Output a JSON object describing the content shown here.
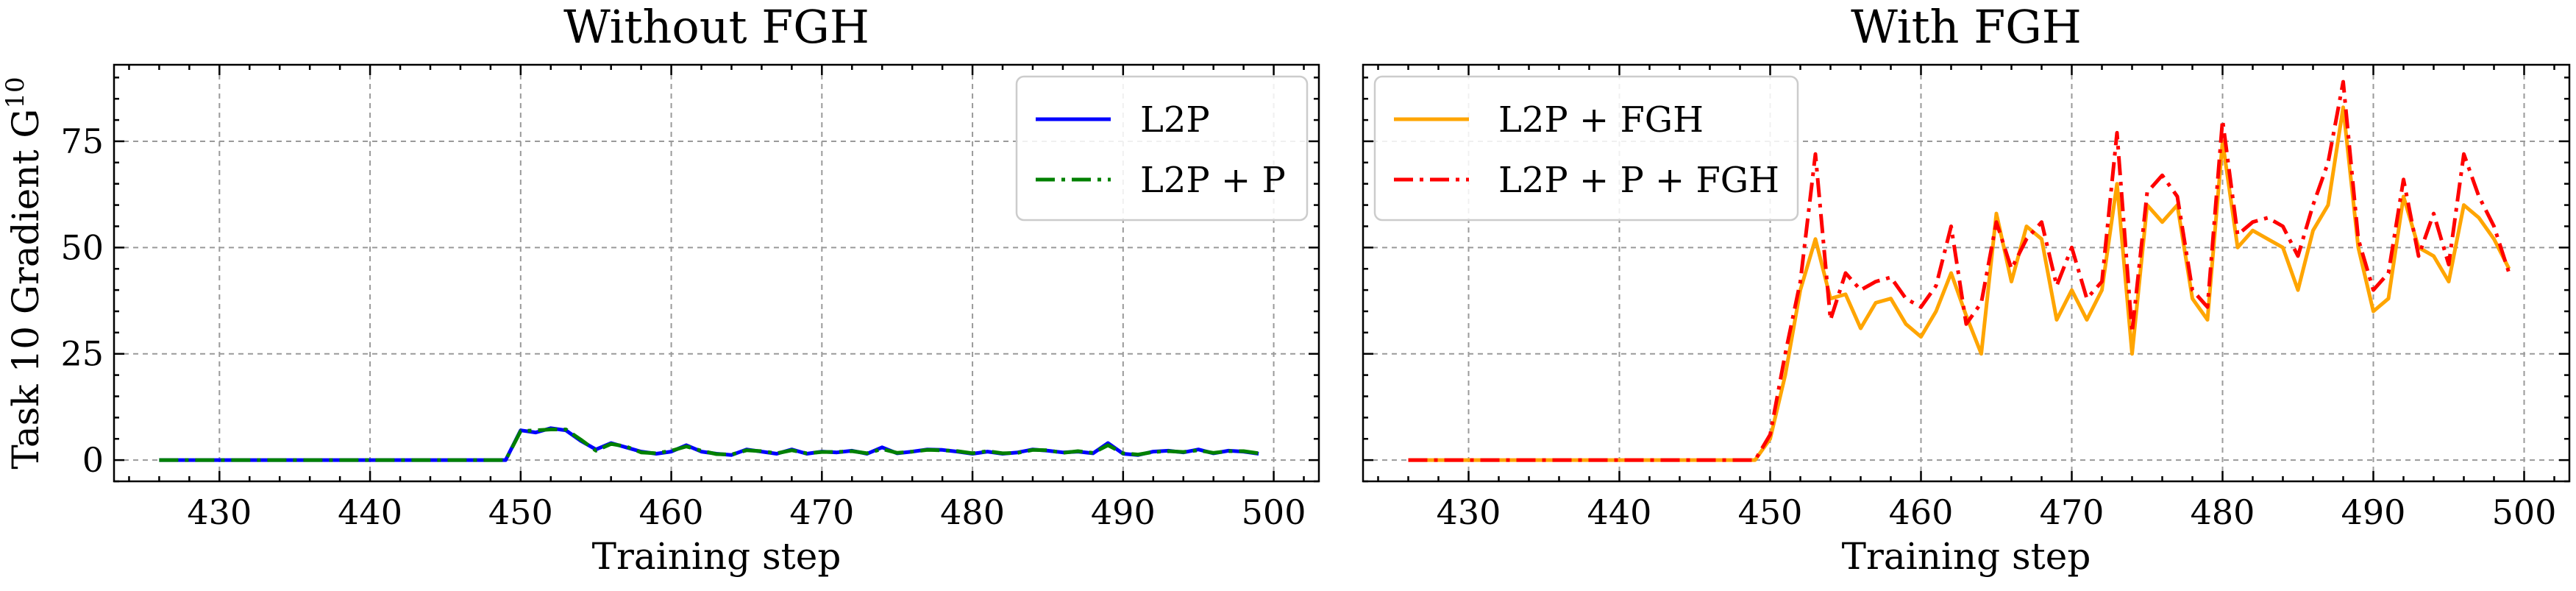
{
  "chart_data": [
    {
      "type": "line",
      "title": "Without FGH",
      "xlabel": "Training step",
      "ylabel": "Task 10 Gradient G",
      "ylabel_superscript": "10",
      "xlim": [
        423,
        503
      ],
      "ylim": [
        -5,
        93
      ],
      "xticks": [
        430,
        440,
        450,
        460,
        470,
        480,
        490,
        500
      ],
      "yticks": [
        0,
        25,
        50,
        75
      ],
      "grid": true,
      "legend_position": "upper right",
      "x": [
        426,
        427,
        428,
        429,
        430,
        431,
        432,
        433,
        434,
        435,
        436,
        437,
        438,
        439,
        440,
        441,
        442,
        443,
        444,
        445,
        446,
        447,
        448,
        449,
        450,
        451,
        452,
        453,
        454,
        455,
        456,
        457,
        458,
        459,
        460,
        461,
        462,
        463,
        464,
        465,
        466,
        467,
        468,
        469,
        470,
        471,
        472,
        473,
        474,
        475,
        476,
        477,
        478,
        479,
        480,
        481,
        482,
        483,
        484,
        485,
        486,
        487,
        488,
        489,
        490,
        491,
        492,
        493,
        494,
        495,
        496,
        497,
        498,
        499
      ],
      "series": [
        {
          "name": "L2P",
          "color": "#0000ff",
          "dash": "solid",
          "values": [
            0,
            0,
            0,
            0,
            0,
            0,
            0,
            0,
            0,
            0,
            0,
            0,
            0,
            0,
            0,
            0,
            0,
            0,
            0,
            0,
            0,
            0,
            0,
            0,
            7,
            6.5,
            7.5,
            7,
            4.5,
            2.5,
            4,
            3,
            2,
            1.5,
            2,
            3.5,
            2,
            1.5,
            1.2,
            2.5,
            2,
            1.5,
            2.5,
            1.5,
            2,
            1.8,
            2.2,
            1.5,
            3,
            1.6,
            2,
            2.5,
            2.4,
            2,
            1.5,
            2,
            1.5,
            1.8,
            2.5,
            2.2,
            1.8,
            2,
            1.6,
            4,
            1.5,
            1.2,
            2,
            2.2,
            1.8,
            2.5,
            1.6,
            2.2,
            2,
            1.5
          ]
        },
        {
          "name": "L2P + P",
          "color": "#008000",
          "dash": "dashdot",
          "values": [
            0,
            0,
            0,
            0,
            0,
            0,
            0,
            0,
            0,
            0,
            0,
            0,
            0,
            0,
            0,
            0,
            0,
            0,
            0,
            0,
            0,
            0,
            0,
            0,
            6.8,
            7,
            7.2,
            7.2,
            4.8,
            2.2,
            3.8,
            3.2,
            1.8,
            1.6,
            2.2,
            3.2,
            2.2,
            1.4,
            1.3,
            2.3,
            2.1,
            1.6,
            2.3,
            1.6,
            1.9,
            1.9,
            2.1,
            1.6,
            2.6,
            1.7,
            2,
            2.4,
            2.3,
            2.1,
            1.6,
            2.1,
            1.6,
            1.7,
            2.4,
            2.3,
            1.7,
            2.1,
            1.7,
            3.5,
            1.6,
            1.3,
            1.9,
            2.1,
            1.9,
            2.3,
            1.7,
            2.1,
            2.1,
            1.6
          ]
        }
      ]
    },
    {
      "type": "line",
      "title": "With FGH",
      "xlabel": "Training step",
      "xlim": [
        423,
        503
      ],
      "ylim": [
        -5,
        93
      ],
      "xticks": [
        430,
        440,
        450,
        460,
        470,
        480,
        490,
        500
      ],
      "yticks": [
        0,
        25,
        50,
        75
      ],
      "grid": true,
      "legend_position": "upper left",
      "x": [
        426,
        427,
        428,
        429,
        430,
        431,
        432,
        433,
        434,
        435,
        436,
        437,
        438,
        439,
        440,
        441,
        442,
        443,
        444,
        445,
        446,
        447,
        448,
        449,
        450,
        451,
        452,
        453,
        454,
        455,
        456,
        457,
        458,
        459,
        460,
        461,
        462,
        463,
        464,
        465,
        466,
        467,
        468,
        469,
        470,
        471,
        472,
        473,
        474,
        475,
        476,
        477,
        478,
        479,
        480,
        481,
        482,
        483,
        484,
        485,
        486,
        487,
        488,
        489,
        490,
        491,
        492,
        493,
        494,
        495,
        496,
        497,
        498,
        499
      ],
      "series": [
        {
          "name": "L2P + FGH",
          "color": "#ffa500",
          "dash": "solid",
          "values": [
            0,
            0,
            0,
            0,
            0,
            0,
            0,
            0,
            0,
            0,
            0,
            0,
            0,
            0,
            0,
            0,
            0,
            0,
            0,
            0,
            0,
            0,
            0,
            0,
            5,
            20,
            40,
            52,
            38,
            39,
            31,
            37,
            38,
            32,
            29,
            35,
            44,
            34,
            25,
            58,
            42,
            55,
            52,
            33,
            40,
            33,
            40,
            65,
            25,
            60,
            56,
            60,
            38,
            33,
            75,
            50,
            54,
            52,
            50,
            40,
            54,
            60,
            83,
            50,
            35,
            38,
            62,
            50,
            48,
            42,
            60,
            57,
            52,
            45
          ]
        },
        {
          "name": "L2P + P + FGH",
          "color": "#ff0000",
          "dash": "dashdot",
          "values": [
            0,
            0,
            0,
            0,
            0,
            0,
            0,
            0,
            0,
            0,
            0,
            0,
            0,
            0,
            0,
            0,
            0,
            0,
            0,
            0,
            0,
            0,
            0,
            0,
            6,
            25,
            42,
            72,
            33,
            44,
            40,
            42,
            43,
            38,
            36,
            41,
            55,
            32,
            37,
            56,
            45,
            52,
            56,
            41,
            50,
            38,
            42,
            77,
            30,
            63,
            67,
            62,
            40,
            36,
            80,
            53,
            56,
            57,
            55,
            48,
            60,
            70,
            89,
            52,
            40,
            44,
            66,
            48,
            58,
            46,
            72,
            62,
            55,
            44
          ]
        }
      ]
    }
  ]
}
